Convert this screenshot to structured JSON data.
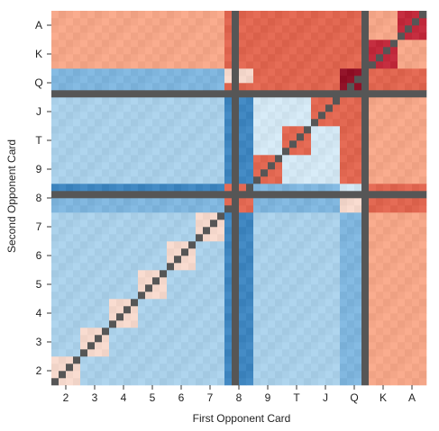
{
  "chart_data": {
    "type": "heatmap",
    "title": "",
    "xlabel": "First Opponent Card",
    "ylabel": "Second Opponent Card",
    "x_categories": [
      "2",
      "3",
      "4",
      "5",
      "6",
      "7",
      "8",
      "9",
      "T",
      "J",
      "Q",
      "K",
      "A"
    ],
    "y_categories": [
      "2",
      "3",
      "4",
      "5",
      "6",
      "7",
      "8",
      "9",
      "T",
      "J",
      "Q",
      "K",
      "A"
    ],
    "cells_per_rank": 4,
    "grid": false,
    "legend": "none",
    "colors": {
      "dark_blue": "#3f86c0",
      "mid_blue": "#7fb5dd",
      "light_blue": "#a9cfe8",
      "pale_blue": "#d2e6f2",
      "pale_pink": "#f3d6ca",
      "salmon": "#f4a688",
      "red_orange": "#e06650",
      "crimson": "#c0283a",
      "dark_red": "#8f0f25",
      "separator": "#565656"
    }
  }
}
